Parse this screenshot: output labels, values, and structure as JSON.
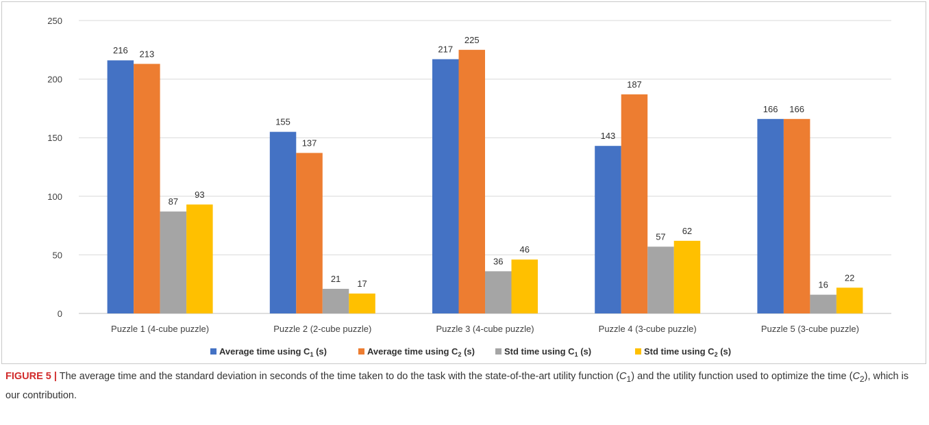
{
  "chart_data": {
    "type": "bar",
    "ylim": [
      0,
      250
    ],
    "yticks": [
      0,
      50,
      100,
      150,
      200,
      250
    ],
    "grid": true,
    "legend_position": "bottom",
    "categories": [
      "Puzzle 1 (4-cube puzzle)",
      "Puzzle 2 (2-cube puzzle)",
      "Puzzle 3 (4-cube puzzle)",
      "Puzzle 4 (3-cube puzzle)",
      "Puzzle 5 (3-cube puzzle)"
    ],
    "series": [
      {
        "name_prefix": "Average time using C",
        "name_sub": "1",
        "name_suffix": " (s)",
        "color": "#4472c4",
        "values": [
          216,
          155,
          217,
          143,
          166
        ]
      },
      {
        "name_prefix": "Average time using C",
        "name_sub": "2",
        "name_suffix": " (s)",
        "color": "#ed7d31",
        "values": [
          213,
          137,
          225,
          187,
          166
        ]
      },
      {
        "name_prefix": "Std time using C",
        "name_sub": "1",
        "name_suffix": " (s)",
        "color": "#a5a5a5",
        "values": [
          87,
          21,
          36,
          57,
          16
        ]
      },
      {
        "name_prefix": "Std time using C",
        "name_sub": "2",
        "name_suffix": " (s)",
        "color": "#ffc000",
        "values": [
          93,
          17,
          46,
          62,
          22
        ]
      }
    ]
  },
  "caption": {
    "label": "FIGURE 5 |",
    "text_part1": " The average time and the standard deviation in seconds of the time taken to do the task with the state-of-the-art utility function (",
    "c1_letter": "C",
    "c1_sub": "1",
    "text_part2": ") and the utility function used to optimize the time (",
    "c2_letter": "C",
    "c2_sub": "2",
    "text_part3": "), which is our contribution."
  }
}
